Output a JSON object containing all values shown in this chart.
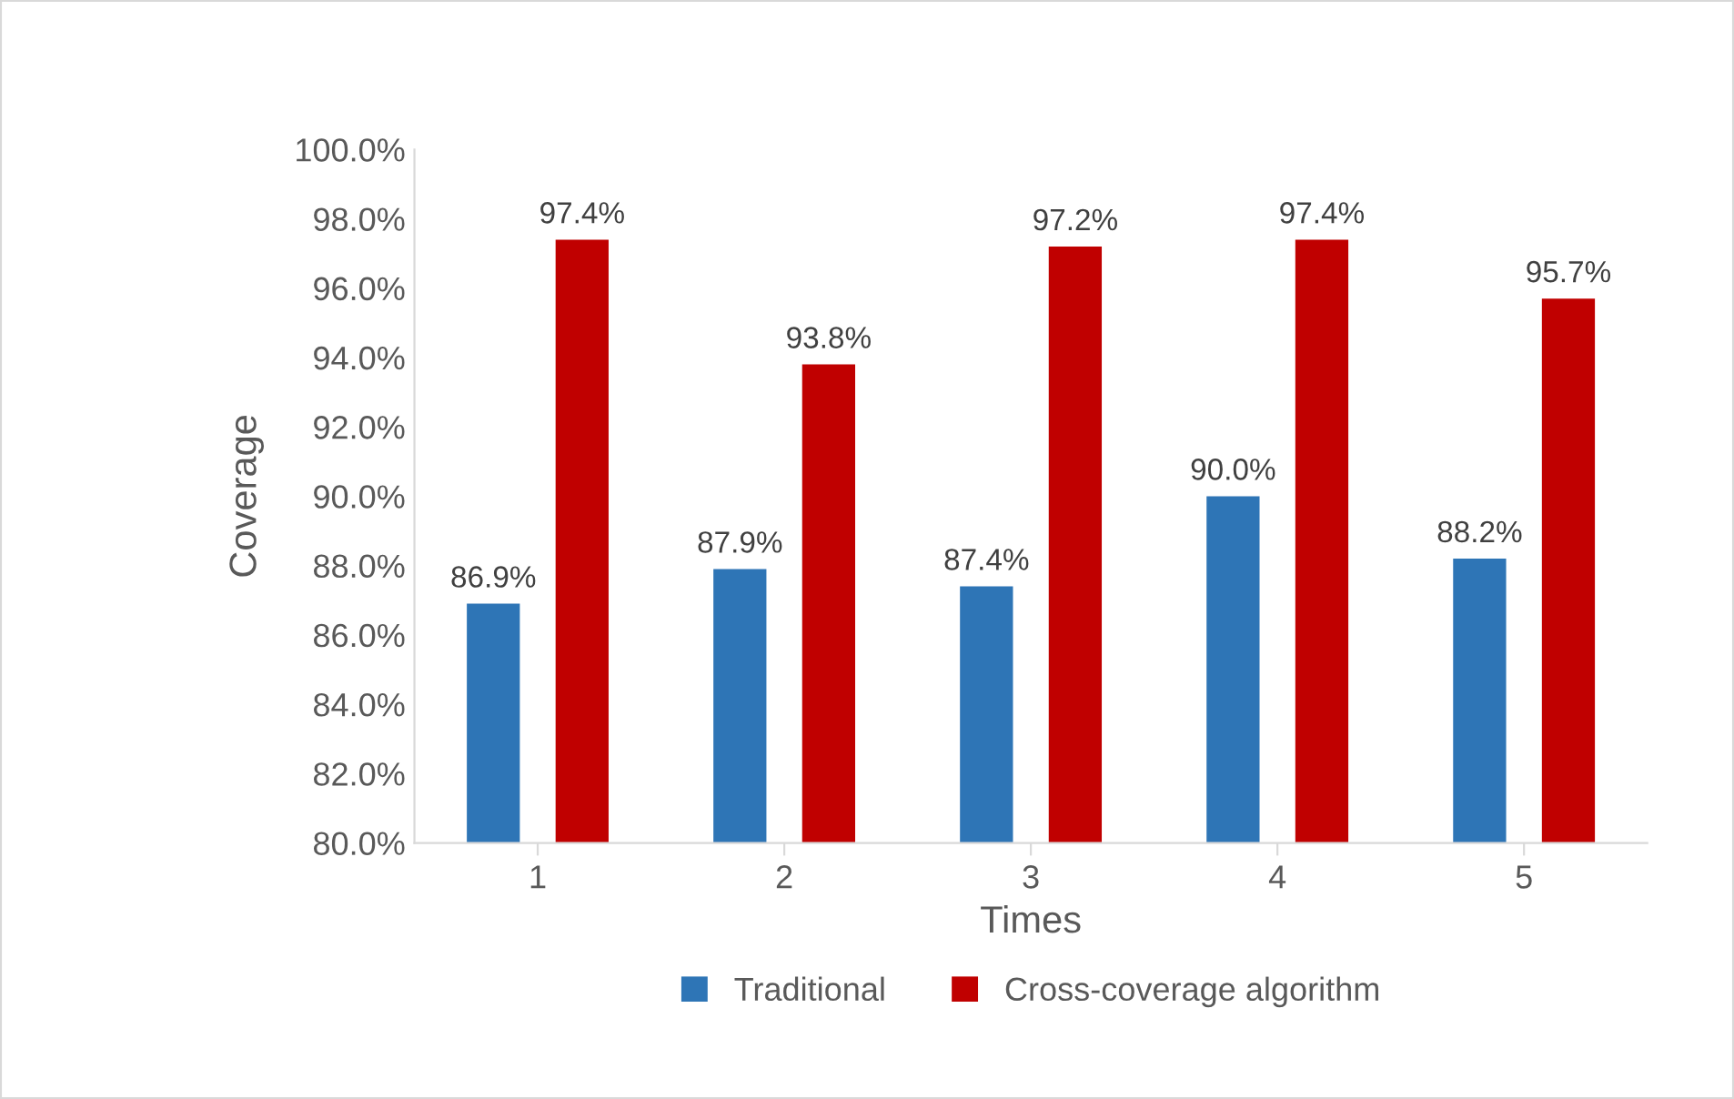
{
  "chart_data": {
    "type": "bar",
    "xlabel": "Times",
    "ylabel": "Coverage",
    "categories": [
      "1",
      "2",
      "3",
      "4",
      "5"
    ],
    "series": [
      {
        "name": "Traditional",
        "color": "#2e75b6",
        "values": [
          86.9,
          87.9,
          87.4,
          90.0,
          88.2
        ],
        "value_labels": [
          "86.9%",
          "87.9%",
          "87.4%",
          "90.0%",
          "88.2%"
        ]
      },
      {
        "name": "Cross-coverage algorithm",
        "color": "#c00000",
        "values": [
          97.4,
          93.8,
          97.2,
          97.4,
          95.7
        ],
        "value_labels": [
          "97.4%",
          "93.8%",
          "97.2%",
          "97.4%",
          "95.7%"
        ]
      }
    ],
    "ylim": [
      80,
      100
    ],
    "yticks": [
      {
        "value": 80,
        "label": "80.0%"
      },
      {
        "value": 82,
        "label": "82.0%"
      },
      {
        "value": 84,
        "label": "84.0%"
      },
      {
        "value": 86,
        "label": "86.0%"
      },
      {
        "value": 88,
        "label": "88.0%"
      },
      {
        "value": 90,
        "label": "90.0%"
      },
      {
        "value": 92,
        "label": "92.0%"
      },
      {
        "value": 94,
        "label": "94.0%"
      },
      {
        "value": 96,
        "label": "96.0%"
      },
      {
        "value": 98,
        "label": "98.0%"
      },
      {
        "value": 100,
        "label": "100.0%"
      }
    ],
    "grid": false,
    "legend": "bottom"
  }
}
